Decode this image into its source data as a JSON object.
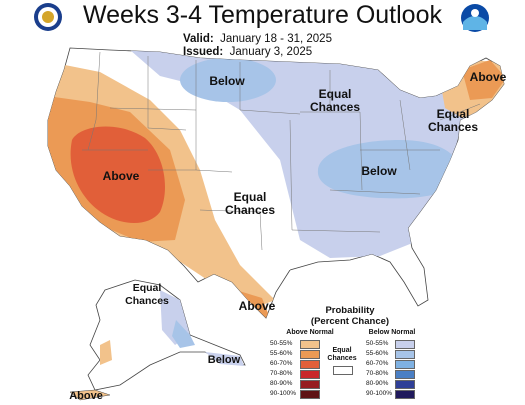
{
  "header": {
    "title": "Weeks 3-4 Temperature Outlook",
    "valid_label": "Valid:",
    "valid_value": "January 18 - 31, 2025",
    "issued_label": "Issued:",
    "issued_value": "January 3, 2025"
  },
  "logos": {
    "left": "doc-seal-icon",
    "right": "noaa-logo-icon"
  },
  "regions": {
    "above_west": "Above",
    "below_north": "Below",
    "equal_north_line1": "Equal",
    "equal_north_line2": "Chances",
    "above_northeast": "Above",
    "equal_east_line1": "Equal",
    "equal_east_line2": "Chances",
    "below_east": "Below",
    "equal_central_line1": "Equal",
    "equal_central_line2": "Chances",
    "above_texas": "Above",
    "equal_alaska_line1": "Equal",
    "equal_alaska_line2": "Chances",
    "below_alaska": "Below",
    "above_alaska": "Above"
  },
  "legend": {
    "title_line1": "Probability",
    "title_line2": "(Percent Chance)",
    "above_header": "Above Normal",
    "below_header": "Below Normal",
    "equal_line1": "Equal",
    "equal_line2": "Chances",
    "above_rows": [
      {
        "label": "50-55%",
        "color": "#f2c28b"
      },
      {
        "label": "55-60%",
        "color": "#eb9a55"
      },
      {
        "label": "60-70%",
        "color": "#e15f39"
      },
      {
        "label": "70-80%",
        "color": "#c8282b"
      },
      {
        "label": "80-90%",
        "color": "#961d20"
      },
      {
        "label": "90-100%",
        "color": "#5e1214"
      }
    ],
    "below_rows": [
      {
        "label": "50-55%",
        "color": "#c8d0ec"
      },
      {
        "label": "55-60%",
        "color": "#a7c4e8"
      },
      {
        "label": "60-70%",
        "color": "#7fb1e2"
      },
      {
        "label": "70-80%",
        "color": "#4a7fc4"
      },
      {
        "label": "80-90%",
        "color": "#2f3f97"
      },
      {
        "label": "90-100%",
        "color": "#201a5c"
      }
    ],
    "equal_color": "#ffffff"
  }
}
